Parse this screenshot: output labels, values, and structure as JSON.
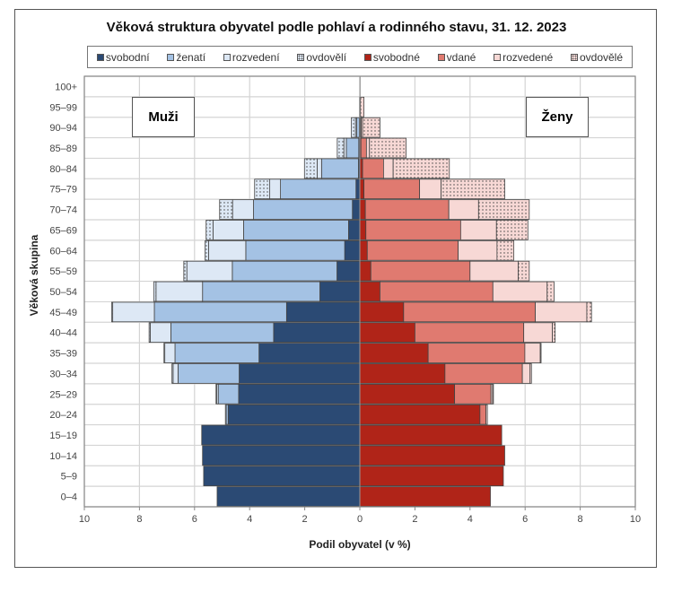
{
  "chart_data": {
    "type": "bar",
    "subtype": "population-pyramid-stacked",
    "title": "Věková struktura obyvatel podle pohlaví a rodinného stavu, 31. 12. 2023",
    "xlabel": "Podil obyvatel (v %)",
    "ylabel": "Věková skupina",
    "xlim": [
      -10,
      10
    ],
    "xticks": [
      "10",
      "8",
      "6",
      "4",
      "2",
      "0",
      "2",
      "4",
      "6",
      "8",
      "10"
    ],
    "grid": true,
    "legend_placement": "top",
    "panel_labels": {
      "left": "Muži",
      "right": "Ženy"
    },
    "categories": [
      "0–4",
      "5–9",
      "10–14",
      "15–19",
      "20–24",
      "25–29",
      "30–34",
      "35–39",
      "40–44",
      "45–49",
      "50–54",
      "55–59",
      "60–64",
      "65–69",
      "70–74",
      "75–79",
      "80–84",
      "85–89",
      "90–94",
      "95–99",
      "100+"
    ],
    "series": [
      {
        "name": "svobodní",
        "side": "left",
        "color": "#2b4a74",
        "pattern": "solid",
        "values": [
          5.18,
          5.67,
          5.71,
          5.74,
          4.78,
          4.4,
          4.38,
          3.66,
          3.13,
          2.66,
          1.45,
          0.83,
          0.55,
          0.41,
          0.27,
          0.14,
          0.05,
          0.04,
          0.02,
          0,
          0
        ]
      },
      {
        "name": "ženatí",
        "side": "left",
        "color": "#a4c2e4",
        "pattern": "solid",
        "values": [
          0,
          0,
          0,
          0,
          0.07,
          0.74,
          2.22,
          3.05,
          3.73,
          4.8,
          4.26,
          3.8,
          3.59,
          3.81,
          3.59,
          2.74,
          1.34,
          0.45,
          0.1,
          0,
          0
        ]
      },
      {
        "name": "rozvedení",
        "side": "left",
        "color": "#dde8f5",
        "pattern": "solid",
        "values": [
          0,
          0,
          0,
          0,
          0.03,
          0.06,
          0.18,
          0.37,
          0.75,
          1.51,
          1.69,
          1.65,
          1.35,
          1.11,
          0.76,
          0.39,
          0.16,
          0.09,
          0.04,
          0,
          0
        ]
      },
      {
        "name": "ovdovělí",
        "side": "left",
        "color": "#dde8f5",
        "pattern": "dotted",
        "values": [
          0,
          0,
          0,
          0,
          0,
          0.02,
          0.04,
          0.03,
          0.04,
          0.04,
          0.08,
          0.11,
          0.13,
          0.25,
          0.47,
          0.55,
          0.46,
          0.24,
          0.15,
          0.01,
          0
        ]
      },
      {
        "name": "svobodné",
        "side": "right",
        "color": "#b02418",
        "pattern": "solid",
        "values": [
          4.74,
          5.21,
          5.26,
          5.15,
          4.36,
          3.44,
          3.09,
          2.48,
          2.0,
          1.59,
          0.73,
          0.4,
          0.27,
          0.22,
          0.2,
          0.15,
          0.1,
          0.04,
          0.02,
          0,
          0
        ]
      },
      {
        "name": "vdané",
        "side": "right",
        "color": "#e07a70",
        "pattern": "solid",
        "values": [
          0,
          0,
          0,
          0,
          0.22,
          1.32,
          2.81,
          3.51,
          3.95,
          4.78,
          4.1,
          3.6,
          3.3,
          3.44,
          3.03,
          2.02,
          0.76,
          0.2,
          0.03,
          0.01,
          0
        ]
      },
      {
        "name": "rozvedené",
        "side": "right",
        "color": "#f7d8d5",
        "pattern": "solid",
        "values": [
          0,
          0,
          0,
          0,
          0.05,
          0.06,
          0.28,
          0.56,
          1.04,
          1.87,
          1.97,
          1.75,
          1.41,
          1.3,
          1.08,
          0.78,
          0.35,
          0.11,
          0.05,
          0.01,
          0
        ]
      },
      {
        "name": "ovdovělé",
        "side": "right",
        "color": "#f7d8d5",
        "pattern": "dotted",
        "values": [
          0,
          0,
          0,
          0,
          0,
          0.03,
          0.05,
          0.03,
          0.1,
          0.17,
          0.25,
          0.4,
          0.61,
          1.14,
          1.84,
          2.31,
          2.04,
          1.33,
          0.63,
          0.13,
          0.01
        ]
      }
    ]
  }
}
